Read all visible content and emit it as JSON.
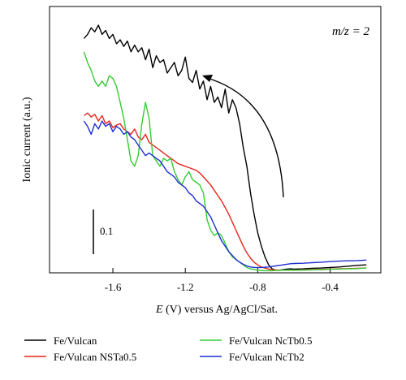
{
  "chart_data": {
    "type": "line",
    "annotation": "m/z = 2",
    "xlabel_italic": "E",
    "xlabel_rest": " (V) versus Ag/AgCl/Sat.",
    "ylabel": "Ionic current (a.u.)",
    "xlim": [
      -1.95,
      -0.12
    ],
    "ylim": [
      0,
      1
    ],
    "xticks": [
      "-1.6",
      "-1.2",
      "-0.8",
      "-0.4"
    ],
    "xtick_values": [
      -1.6,
      -1.2,
      -0.8,
      -0.4
    ],
    "scalebar_label": "0.1",
    "scalebar_value": 0.1,
    "series": [
      {
        "name": "Fe/Vulcan",
        "color": "#000000",
        "x": [
          -1.76,
          -1.74,
          -1.72,
          -1.7,
          -1.68,
          -1.66,
          -1.64,
          -1.62,
          -1.6,
          -1.58,
          -1.56,
          -1.54,
          -1.52,
          -1.5,
          -1.48,
          -1.46,
          -1.44,
          -1.42,
          -1.4,
          -1.38,
          -1.36,
          -1.34,
          -1.32,
          -1.3,
          -1.28,
          -1.26,
          -1.24,
          -1.22,
          -1.2,
          -1.18,
          -1.16,
          -1.14,
          -1.12,
          -1.1,
          -1.08,
          -1.06,
          -1.04,
          -1.02,
          -1.0,
          -0.98,
          -0.96,
          -0.94,
          -0.92,
          -0.9,
          -0.88,
          -0.86,
          -0.84,
          -0.82,
          -0.8,
          -0.78,
          -0.76,
          -0.74,
          -0.72,
          -0.7,
          -0.68,
          -0.66,
          -0.64,
          -0.62,
          -0.6,
          -0.55,
          -0.5,
          -0.45,
          -0.4,
          -0.35,
          -0.3,
          -0.25,
          -0.2
        ],
        "y": [
          0.88,
          0.895,
          0.92,
          0.905,
          0.93,
          0.895,
          0.91,
          0.88,
          0.895,
          0.86,
          0.875,
          0.85,
          0.87,
          0.83,
          0.855,
          0.83,
          0.845,
          0.8,
          0.84,
          0.77,
          0.815,
          0.79,
          0.8,
          0.75,
          0.77,
          0.79,
          0.74,
          0.76,
          0.81,
          0.73,
          0.715,
          0.76,
          0.69,
          0.72,
          0.65,
          0.7,
          0.64,
          0.66,
          0.62,
          0.69,
          0.6,
          0.65,
          0.62,
          0.56,
          0.47,
          0.4,
          0.3,
          0.22,
          0.15,
          0.1,
          0.06,
          0.03,
          0.015,
          0.01,
          0.01,
          0.012,
          0.014,
          0.015,
          0.014,
          0.015,
          0.017,
          0.018,
          0.02,
          0.022,
          0.025,
          0.028,
          0.03
        ]
      },
      {
        "name": "Fe/Vulcan NSTa0.5",
        "color": "#e8241c",
        "x": [
          -1.76,
          -1.74,
          -1.72,
          -1.7,
          -1.68,
          -1.66,
          -1.64,
          -1.62,
          -1.6,
          -1.58,
          -1.56,
          -1.54,
          -1.52,
          -1.5,
          -1.48,
          -1.46,
          -1.44,
          -1.42,
          -1.4,
          -1.38,
          -1.36,
          -1.34,
          -1.32,
          -1.3,
          -1.28,
          -1.26,
          -1.24,
          -1.22,
          -1.2,
          -1.18,
          -1.16,
          -1.14,
          -1.12,
          -1.1,
          -1.08,
          -1.06,
          -1.04,
          -1.02,
          -1.0,
          -0.98,
          -0.96,
          -0.94,
          -0.92,
          -0.9,
          -0.88,
          -0.86,
          -0.84,
          -0.82,
          -0.8,
          -0.78,
          -0.76,
          -0.74,
          -0.72,
          -0.7,
          -0.68,
          -0.66,
          -0.64,
          -0.62,
          -0.6,
          -0.55,
          -0.5,
          -0.45,
          -0.4,
          -0.35,
          -0.3,
          -0.25,
          -0.2
        ],
        "y": [
          0.59,
          0.6,
          0.585,
          0.595,
          0.57,
          0.59,
          0.56,
          0.57,
          0.545,
          0.555,
          0.56,
          0.54,
          0.53,
          0.52,
          0.54,
          0.51,
          0.5,
          0.52,
          0.49,
          0.48,
          0.47,
          0.46,
          0.45,
          0.44,
          0.43,
          0.42,
          0.41,
          0.405,
          0.4,
          0.395,
          0.39,
          0.385,
          0.375,
          0.36,
          0.345,
          0.33,
          0.31,
          0.29,
          0.27,
          0.245,
          0.22,
          0.19,
          0.16,
          0.13,
          0.1,
          0.075,
          0.055,
          0.04,
          0.03,
          0.022,
          0.018,
          0.014,
          0.012,
          0.011,
          0.01,
          0.01,
          0.01,
          0.01,
          0.01,
          0.011,
          0.012,
          0.013,
          0.014,
          0.015,
          0.016,
          0.017,
          0.018
        ]
      },
      {
        "name": "Fe/Vulcan NcTb0.5",
        "color": "#33cc33",
        "x": [
          -1.76,
          -1.74,
          -1.72,
          -1.7,
          -1.68,
          -1.66,
          -1.64,
          -1.62,
          -1.6,
          -1.58,
          -1.56,
          -1.54,
          -1.52,
          -1.5,
          -1.48,
          -1.46,
          -1.44,
          -1.42,
          -1.4,
          -1.38,
          -1.36,
          -1.34,
          -1.32,
          -1.3,
          -1.28,
          -1.26,
          -1.24,
          -1.22,
          -1.2,
          -1.18,
          -1.16,
          -1.14,
          -1.12,
          -1.1,
          -1.08,
          -1.06,
          -1.04,
          -1.02,
          -1.0,
          -0.98,
          -0.96,
          -0.94,
          -0.92,
          -0.9,
          -0.88,
          -0.86,
          -0.84,
          -0.82,
          -0.8,
          -0.78,
          -0.76,
          -0.74,
          -0.72,
          -0.7,
          -0.68,
          -0.66,
          -0.64,
          -0.62,
          -0.6,
          -0.55,
          -0.5,
          -0.45,
          -0.4,
          -0.35,
          -0.3,
          -0.25,
          -0.2
        ],
        "y": [
          0.83,
          0.79,
          0.76,
          0.72,
          0.7,
          0.72,
          0.7,
          0.74,
          0.73,
          0.7,
          0.64,
          0.58,
          0.5,
          0.42,
          0.4,
          0.44,
          0.56,
          0.64,
          0.58,
          0.44,
          0.42,
          0.4,
          0.43,
          0.42,
          0.43,
          0.38,
          0.35,
          0.33,
          0.36,
          0.38,
          0.35,
          0.34,
          0.33,
          0.3,
          0.2,
          0.16,
          0.14,
          0.15,
          0.14,
          0.11,
          0.08,
          0.06,
          0.05,
          0.04,
          0.03,
          0.02,
          0.015,
          0.012,
          0.01,
          0.009,
          0.008,
          0.008,
          0.008,
          0.009,
          0.009,
          0.01,
          0.01,
          0.01,
          0.01,
          0.01,
          0.011,
          0.012,
          0.013,
          0.014,
          0.015,
          0.016,
          0.018
        ]
      },
      {
        "name": "Fe/Vulcan NcTb2",
        "color": "#1f2fd0",
        "x": [
          -1.76,
          -1.74,
          -1.72,
          -1.7,
          -1.68,
          -1.66,
          -1.64,
          -1.62,
          -1.6,
          -1.58,
          -1.56,
          -1.54,
          -1.52,
          -1.5,
          -1.48,
          -1.46,
          -1.44,
          -1.42,
          -1.4,
          -1.38,
          -1.36,
          -1.34,
          -1.32,
          -1.3,
          -1.28,
          -1.26,
          -1.24,
          -1.22,
          -1.2,
          -1.18,
          -1.16,
          -1.14,
          -1.12,
          -1.1,
          -1.08,
          -1.06,
          -1.04,
          -1.02,
          -1.0,
          -0.98,
          -0.96,
          -0.94,
          -0.92,
          -0.9,
          -0.88,
          -0.86,
          -0.84,
          -0.82,
          -0.8,
          -0.78,
          -0.76,
          -0.74,
          -0.72,
          -0.7,
          -0.68,
          -0.66,
          -0.64,
          -0.62,
          -0.6,
          -0.55,
          -0.5,
          -0.45,
          -0.4,
          -0.35,
          -0.3,
          -0.25,
          -0.2
        ],
        "y": [
          0.57,
          0.55,
          0.52,
          0.56,
          0.54,
          0.57,
          0.55,
          0.56,
          0.53,
          0.55,
          0.54,
          0.52,
          0.53,
          0.51,
          0.5,
          0.48,
          0.46,
          0.44,
          0.45,
          0.44,
          0.43,
          0.42,
          0.4,
          0.38,
          0.37,
          0.36,
          0.34,
          0.33,
          0.32,
          0.3,
          0.29,
          0.27,
          0.26,
          0.25,
          0.23,
          0.21,
          0.18,
          0.15,
          0.12,
          0.1,
          0.08,
          0.065,
          0.05,
          0.04,
          0.032,
          0.026,
          0.022,
          0.02,
          0.02,
          0.02,
          0.021,
          0.022,
          0.024,
          0.026,
          0.028,
          0.03,
          0.032,
          0.034,
          0.035,
          0.036,
          0.038,
          0.04,
          0.042,
          0.044,
          0.045,
          0.046,
          0.048
        ]
      }
    ]
  }
}
